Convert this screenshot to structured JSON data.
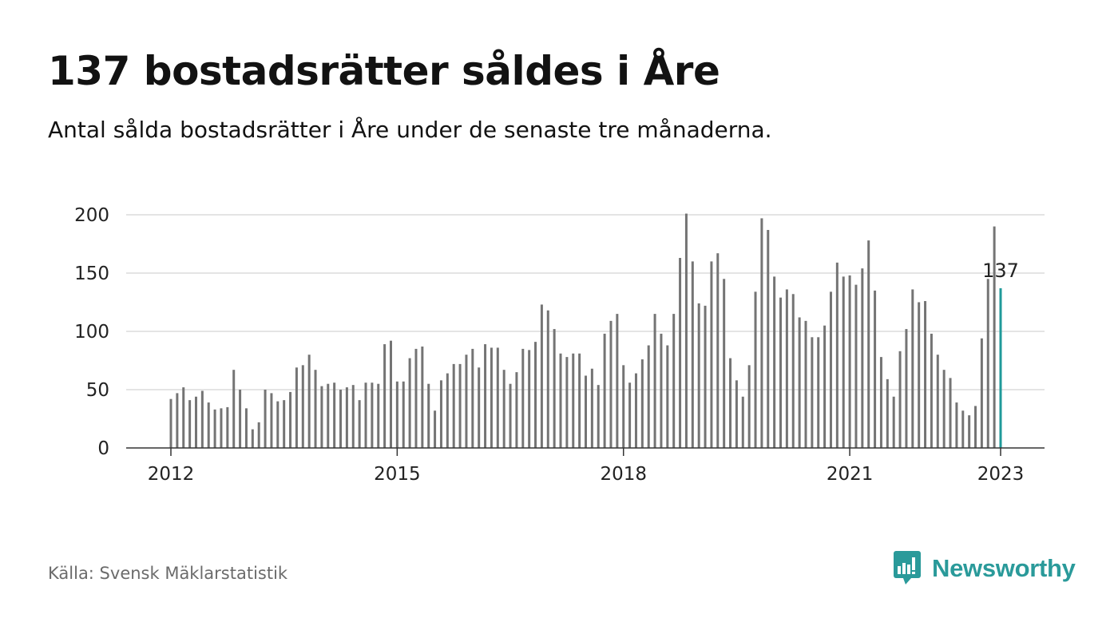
{
  "title": "137 bostadsrätter såldes i Åre",
  "subtitle": "Antal sålda bostadsrätter i Åre under de senaste tre månaderna.",
  "source": "Källa: Svensk Mäklarstatistik",
  "brand": {
    "name": "Newsworthy",
    "color": "#2a9a9a"
  },
  "colors": {
    "bar": "#747474",
    "highlight": "#1f9a9a",
    "grid": "#dcdcdc",
    "axis": "#333333"
  },
  "chart_data": {
    "type": "bar",
    "title": "137 bostadsrätter såldes i Åre",
    "xlabel": "",
    "ylabel": "",
    "x_tick_labels": [
      "2012",
      "2015",
      "2018",
      "2021",
      "2023"
    ],
    "y_ticks": [
      0,
      50,
      100,
      150,
      200
    ],
    "ylim": [
      0,
      200
    ],
    "grid": true,
    "highlight_label": "137",
    "series": [
      {
        "start": "2012-01",
        "frequency": "monthly",
        "values": [
          42,
          47,
          52,
          41,
          44,
          49,
          39,
          33,
          34,
          35,
          67,
          50,
          34,
          16,
          22,
          50,
          47,
          40,
          41,
          48,
          69,
          71,
          80,
          67,
          53,
          55,
          56,
          50,
          52,
          54,
          41,
          56,
          56,
          55,
          89,
          92,
          57,
          57,
          77,
          85,
          87,
          55,
          32,
          58,
          64,
          72,
          72,
          80,
          85,
          69,
          89,
          86,
          86,
          67,
          55,
          65,
          85,
          84,
          91,
          123,
          118,
          102,
          81,
          78,
          81,
          81,
          62,
          68,
          54,
          98,
          109,
          115,
          71,
          56,
          64,
          76,
          88,
          115,
          98,
          88,
          115,
          163,
          201,
          160,
          124,
          122,
          160,
          167,
          145,
          77,
          58,
          44,
          71,
          134,
          197,
          187,
          147,
          129,
          136,
          132,
          112,
          109,
          95,
          95,
          105,
          134,
          159,
          147,
          148,
          140,
          154,
          178,
          135,
          78,
          59,
          44,
          83,
          102,
          136,
          125,
          126,
          98,
          80,
          67,
          60,
          39,
          32,
          28,
          36,
          94,
          145,
          190,
          137
        ]
      }
    ]
  }
}
